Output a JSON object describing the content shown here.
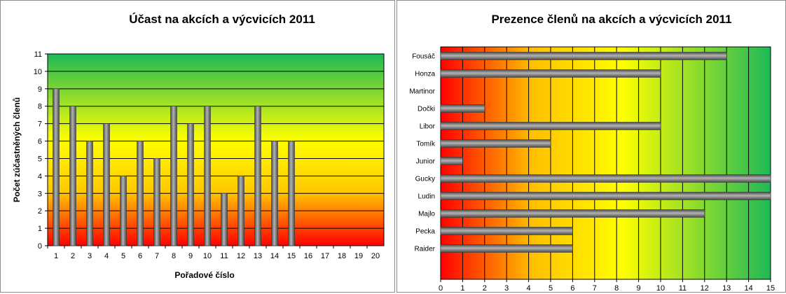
{
  "chart_data": [
    {
      "type": "bar",
      "title": "Účast na akcích a výcvicích 2011",
      "xlabel": "Pořadové číslo",
      "ylabel": "Počet zúčastněných členů",
      "categories": [
        "1",
        "2",
        "3",
        "4",
        "5",
        "6",
        "7",
        "8",
        "9",
        "10",
        "11",
        "12",
        "13",
        "14",
        "15",
        "16",
        "17",
        "18",
        "19",
        "20"
      ],
      "values": [
        9,
        8,
        6,
        7,
        4,
        6,
        5,
        8,
        7,
        8,
        3,
        4,
        8,
        6,
        6,
        null,
        null,
        null,
        null,
        null
      ],
      "ylim": [
        0,
        11
      ],
      "yticks": [
        "0",
        "1",
        "2",
        "3",
        "4",
        "5",
        "6",
        "7",
        "8",
        "9",
        "10",
        "11"
      ],
      "grid": "horizontal",
      "background_gradient": [
        "#22bb55",
        "#ffff00",
        "#ff0000"
      ]
    },
    {
      "type": "bar",
      "orientation": "horizontal",
      "title": "Prezence členů na akcích a výcvicích 2011",
      "categories": [
        "Fousáč",
        "Honza",
        "Martinor",
        "Dočki",
        "Libor",
        "Tomík",
        "Junior",
        "Gucky",
        "Ludin",
        "Majlo",
        "Pecka",
        "Raider"
      ],
      "values": [
        13,
        10,
        0,
        2,
        10,
        5,
        1,
        15,
        15,
        12,
        6,
        6
      ],
      "xlim": [
        0,
        15
      ],
      "xticks": [
        "0",
        "1",
        "2",
        "3",
        "4",
        "5",
        "6",
        "7",
        "8",
        "9",
        "10",
        "11",
        "12",
        "13",
        "14",
        "15"
      ],
      "grid": "vertical",
      "background_gradient": [
        "#ff0000",
        "#ffff00",
        "#22bb55"
      ]
    }
  ],
  "colors": {
    "bar": "#7f7f7f",
    "grid": "#000000"
  }
}
